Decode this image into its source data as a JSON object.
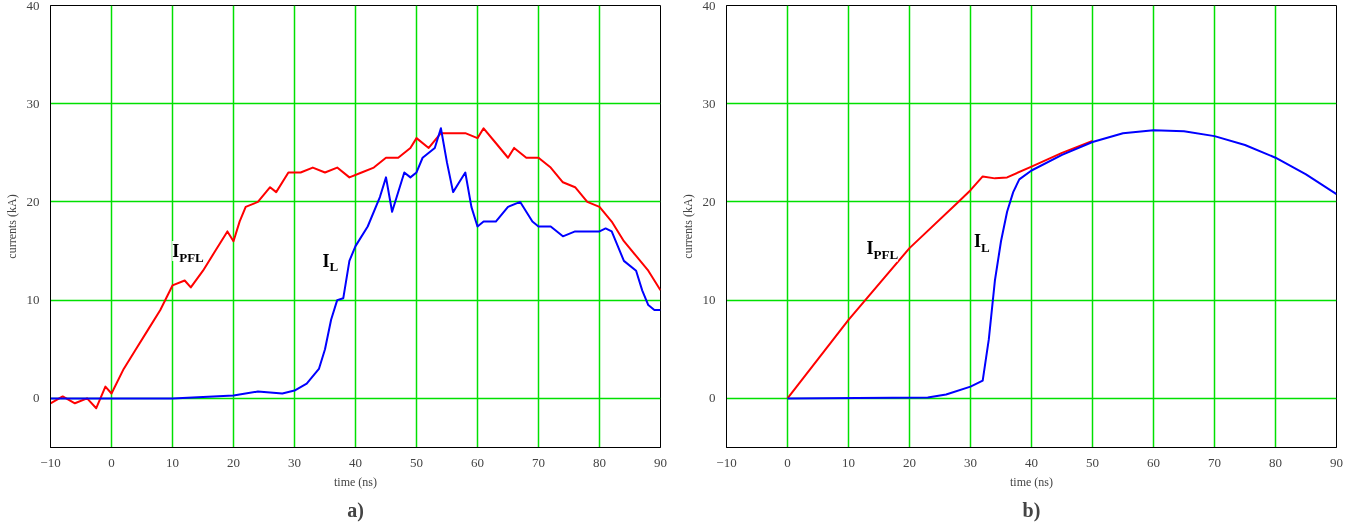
{
  "chart_data": [
    {
      "type": "line",
      "xlabel": "time (ns)",
      "ylabel": "currents (kA)",
      "annotations": [
        "a)"
      ],
      "xlim": [
        -10,
        90
      ],
      "ylim": [
        -5,
        40
      ],
      "xticks": [
        {
          "value": -10,
          "label": "−10"
        },
        0,
        10,
        20,
        30,
        40,
        50,
        60,
        70,
        80,
        90
      ],
      "yticks": [
        0,
        10,
        20,
        30,
        40
      ],
      "grid": true,
      "legend": false,
      "series": [
        {
          "name": "I$_{PFL}$",
          "color": "#ff0000",
          "x": [
            -10,
            -8,
            -6,
            -4,
            -2.5,
            -1,
            0,
            2,
            4,
            6,
            8,
            10,
            12,
            13,
            15,
            17,
            19,
            20,
            21,
            22,
            24,
            26,
            27,
            29,
            31,
            33,
            35,
            37,
            39,
            41,
            43,
            45,
            47,
            49,
            50,
            52,
            54,
            56,
            58,
            60,
            61,
            63,
            65,
            66,
            68,
            70,
            72,
            74,
            76,
            78,
            80,
            82,
            84,
            86,
            88,
            90
          ],
          "values": [
            -0.5,
            0.2,
            -0.5,
            0,
            -1,
            1.2,
            0.5,
            3,
            5,
            7,
            9,
            11.5,
            12,
            11.3,
            13,
            15,
            17,
            16,
            18,
            19.5,
            20,
            21.5,
            21,
            23,
            23,
            23.5,
            23,
            23.5,
            22.5,
            23,
            23.5,
            24.5,
            24.5,
            25.5,
            26.5,
            25.5,
            27,
            27,
            27,
            26.5,
            27.5,
            26,
            24.5,
            25.5,
            24.5,
            24.5,
            23.5,
            22,
            21.5,
            20,
            19.5,
            18,
            16,
            14.5,
            13,
            11
          ]
        },
        {
          "name": "I$_{L}$",
          "color": "#0000ff",
          "x": [
            -10,
            -5,
            0,
            10,
            20,
            24,
            28,
            30,
            32,
            34,
            35,
            36,
            37,
            38,
            39,
            40,
            42,
            44,
            45,
            46,
            48,
            49,
            50,
            51,
            53,
            54,
            55,
            56,
            57,
            58,
            59,
            60,
            61,
            63,
            65,
            67,
            69,
            70,
            72,
            74,
            76,
            78,
            80,
            81,
            82,
            84,
            86,
            87,
            88,
            89,
            90
          ],
          "values": [
            0,
            0,
            0,
            0,
            0.3,
            0.7,
            0.5,
            0.8,
            1.5,
            3,
            5,
            8,
            10,
            10.2,
            14,
            15.5,
            17.5,
            20.5,
            22.5,
            19,
            23,
            22.5,
            23,
            24.5,
            25.5,
            27.5,
            24,
            21,
            22,
            23,
            19.5,
            17.5,
            18,
            18,
            19.5,
            20,
            18,
            17.5,
            17.5,
            16.5,
            17,
            17,
            17,
            17.3,
            17,
            14,
            13,
            11,
            9.5,
            9,
            9
          ]
        }
      ]
    },
    {
      "type": "line",
      "xlabel": "time (ns)",
      "ylabel": "currents (kA)",
      "annotations": [
        "b)"
      ],
      "xlim": [
        -10,
        90
      ],
      "ylim": [
        -5,
        40
      ],
      "xticks": [
        {
          "value": -10,
          "label": "−10"
        },
        0,
        10,
        20,
        30,
        40,
        50,
        60,
        70,
        80,
        90
      ],
      "yticks": [
        0,
        10,
        20,
        30,
        40
      ],
      "grid": true,
      "legend": false,
      "series": [
        {
          "name": "I$_{PFL}$",
          "color": "#ff0000",
          "x": [
            0,
            10,
            20,
            28,
            30,
            32,
            34,
            36,
            40,
            45,
            50
          ],
          "values": [
            0,
            8,
            15.3,
            20,
            21.2,
            22.6,
            22.4,
            22.5,
            23.6,
            25,
            26.2
          ]
        },
        {
          "name": "I$_{L}$",
          "color": "#0000ff",
          "x": [
            0,
            23,
            26,
            30,
            32,
            33,
            34,
            35,
            36,
            37,
            38,
            40,
            45,
            50,
            55,
            60,
            65,
            70,
            75,
            80,
            85,
            90
          ],
          "values": [
            0,
            0.1,
            0.4,
            1.2,
            1.8,
            6,
            12,
            16,
            19,
            21,
            22.3,
            23.2,
            24.8,
            26.1,
            27,
            27.3,
            27.2,
            26.7,
            25.8,
            24.5,
            22.8,
            20.8
          ]
        }
      ]
    }
  ]
}
